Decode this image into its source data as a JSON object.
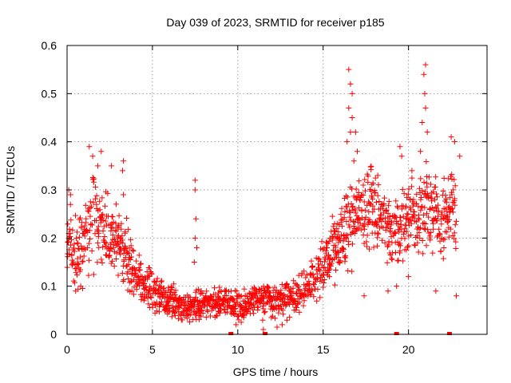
{
  "chart_data": {
    "type": "scatter",
    "title": "Day 039 of 2023, SRMTID for receiver p185",
    "xlabel": "GPS time / hours",
    "ylabel": "SRMTID / TECUs",
    "xlim": [
      0,
      24.6
    ],
    "ylim": [
      0,
      0.6
    ],
    "xticks": [
      0,
      5,
      10,
      15,
      20
    ],
    "yticks": [
      0,
      0.1,
      0.2,
      0.3,
      0.4,
      0.5,
      0.6
    ],
    "xtick_labels": [
      "0",
      "5",
      "10",
      "15",
      "20"
    ],
    "ytick_labels": [
      "0",
      "0.1",
      "0.2",
      "0.3",
      "0.4",
      "0.5",
      "0.6"
    ],
    "grid": true,
    "marker": "+",
    "color": "#ff0000",
    "envelope": {
      "hours": [
        0.0,
        0.5,
        1.0,
        1.5,
        2.0,
        2.5,
        3.0,
        3.5,
        4.0,
        4.5,
        5.0,
        5.5,
        6.0,
        6.5,
        7.0,
        7.5,
        8.0,
        8.5,
        9.0,
        9.5,
        10.0,
        10.5,
        11.0,
        11.5,
        12.0,
        12.5,
        13.0,
        13.5,
        14.0,
        14.5,
        15.0,
        15.5,
        16.0,
        16.5,
        17.0,
        17.5,
        18.0,
        18.5,
        19.0,
        19.5,
        20.0,
        20.5,
        21.0,
        21.5,
        22.0,
        22.5,
        22.8
      ],
      "median": [
        0.2,
        0.15,
        0.19,
        0.24,
        0.22,
        0.2,
        0.18,
        0.16,
        0.12,
        0.1,
        0.09,
        0.085,
        0.07,
        0.06,
        0.055,
        0.06,
        0.06,
        0.065,
        0.07,
        0.065,
        0.055,
        0.06,
        0.07,
        0.075,
        0.07,
        0.07,
        0.075,
        0.08,
        0.1,
        0.12,
        0.14,
        0.17,
        0.2,
        0.22,
        0.25,
        0.26,
        0.25,
        0.24,
        0.23,
        0.22,
        0.25,
        0.25,
        0.26,
        0.24,
        0.25,
        0.26,
        0.24
      ],
      "spread": [
        0.06,
        0.05,
        0.06,
        0.07,
        0.06,
        0.05,
        0.05,
        0.04,
        0.035,
        0.03,
        0.03,
        0.025,
        0.025,
        0.02,
        0.02,
        0.02,
        0.02,
        0.02,
        0.025,
        0.02,
        0.02,
        0.02,
        0.025,
        0.025,
        0.025,
        0.025,
        0.025,
        0.025,
        0.03,
        0.035,
        0.04,
        0.05,
        0.05,
        0.05,
        0.06,
        0.06,
        0.05,
        0.05,
        0.05,
        0.05,
        0.05,
        0.05,
        0.06,
        0.06,
        0.05,
        0.06,
        0.06
      ]
    },
    "outliers": [
      [
        1.3,
        0.39
      ],
      [
        1.5,
        0.37
      ],
      [
        1.8,
        0.35
      ],
      [
        2.0,
        0.38
      ],
      [
        2.6,
        0.35
      ],
      [
        3.3,
        0.36
      ],
      [
        3.25,
        0.34
      ],
      [
        3.3,
        0.29
      ],
      [
        7.5,
        0.32
      ],
      [
        7.5,
        0.3
      ],
      [
        7.55,
        0.24
      ],
      [
        7.5,
        0.2
      ],
      [
        7.6,
        0.18
      ],
      [
        7.45,
        0.15
      ],
      [
        16.5,
        0.55
      ],
      [
        16.6,
        0.52
      ],
      [
        16.7,
        0.5
      ],
      [
        16.5,
        0.47
      ],
      [
        16.7,
        0.45
      ],
      [
        16.6,
        0.42
      ],
      [
        16.9,
        0.42
      ],
      [
        17.0,
        0.38
      ],
      [
        16.4,
        0.4
      ],
      [
        16.8,
        0.36
      ],
      [
        21.0,
        0.56
      ],
      [
        20.9,
        0.54
      ],
      [
        20.95,
        0.5
      ],
      [
        21.0,
        0.47
      ],
      [
        20.8,
        0.44
      ],
      [
        21.1,
        0.42
      ],
      [
        20.7,
        0.38
      ],
      [
        19.5,
        0.39
      ],
      [
        19.6,
        0.37
      ],
      [
        20.2,
        0.34
      ],
      [
        22.5,
        0.41
      ],
      [
        22.7,
        0.4
      ],
      [
        23.0,
        0.37
      ],
      [
        18.2,
        0.33
      ],
      [
        19.3,
        0.1
      ],
      [
        20.0,
        0.12
      ],
      [
        21.6,
        0.09
      ],
      [
        22.8,
        0.08
      ],
      [
        17.4,
        0.08
      ],
      [
        18.8,
        0.09
      ],
      [
        0.1,
        0.3
      ],
      [
        0.2,
        0.29
      ],
      [
        0.5,
        0.09
      ],
      [
        0.8,
        0.1
      ],
      [
        3.8,
        0.09
      ],
      [
        4.5,
        0.07
      ],
      [
        9.9,
        0.02
      ],
      [
        10.2,
        0.025
      ],
      [
        11.5,
        0.01
      ],
      [
        12.3,
        0.015
      ],
      [
        12.6,
        0.02
      ],
      [
        6.7,
        0.03
      ]
    ],
    "zero_markers": [
      9.6,
      11.6,
      19.3,
      22.4
    ]
  }
}
